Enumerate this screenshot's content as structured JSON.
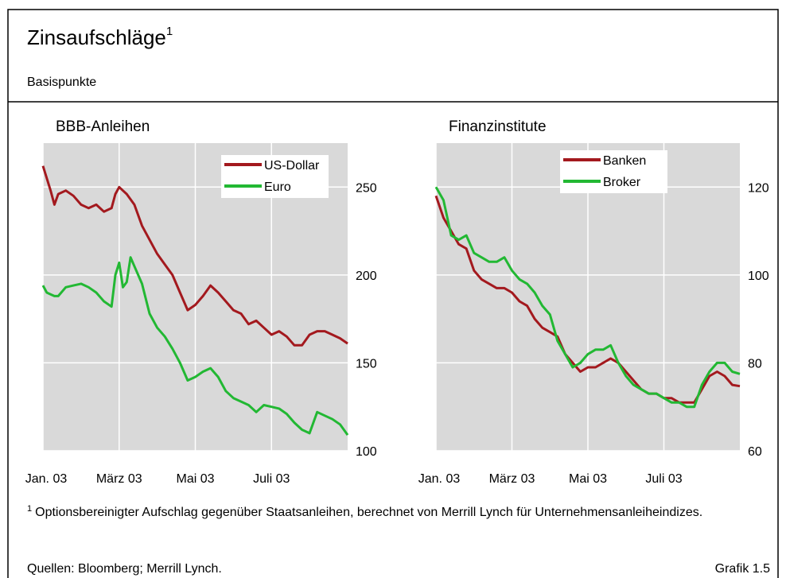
{
  "title": "Zinsaufschläge",
  "title_note": "1",
  "subtitle": "Basispunkte",
  "footnote_mark": "1",
  "footnote": "Optionsbereinigter Aufschlag gegenüber Staatsanleihen, berechnet von Merrill Lynch für Unternehmensanleiheindizes.",
  "source": "Quellen: Bloomberg; Merrill Lynch.",
  "figure_label": "Grafik 1.5",
  "chart_data": [
    {
      "type": "line",
      "title": "BBB-Anleihen",
      "grid": true,
      "legend": "upper right",
      "y_axis_side": "right",
      "xlim": [
        0,
        8
      ],
      "xticks": [
        {
          "value": 0,
          "label": "Jan. 03"
        },
        {
          "value": 2,
          "label": "März 03"
        },
        {
          "value": 4,
          "label": "Mai 03"
        },
        {
          "value": 6,
          "label": "Juli 03"
        }
      ],
      "ylim": [
        100,
        275
      ],
      "yticks": [
        100,
        150,
        200,
        250
      ],
      "x": [
        0,
        0.1,
        0.2,
        0.3,
        0.4,
        0.6,
        0.8,
        1.0,
        1.2,
        1.4,
        1.6,
        1.8,
        1.9,
        2.0,
        2.1,
        2.2,
        2.3,
        2.4,
        2.6,
        2.8,
        3.0,
        3.2,
        3.4,
        3.6,
        3.8,
        4.0,
        4.2,
        4.4,
        4.6,
        4.8,
        5.0,
        5.2,
        5.4,
        5.6,
        5.8,
        6.0,
        6.2,
        6.4,
        6.6,
        6.8,
        7.0,
        7.2,
        7.4,
        7.6,
        7.8,
        8.0
      ],
      "series": [
        {
          "name": "US-Dollar",
          "color": "#a3191e",
          "values": [
            262,
            255,
            248,
            240,
            246,
            248,
            245,
            240,
            238,
            240,
            236,
            238,
            246,
            250,
            248,
            246,
            243,
            240,
            228,
            220,
            212,
            206,
            200,
            190,
            180,
            183,
            188,
            194,
            190,
            185,
            180,
            178,
            172,
            174,
            170,
            166,
            168,
            165,
            160,
            160,
            166,
            168,
            168,
            166,
            164,
            161
          ]
        },
        {
          "name": "Euro",
          "color": "#22b833",
          "values": [
            194,
            190,
            189,
            188,
            188,
            193,
            194,
            195,
            193,
            190,
            185,
            182,
            200,
            207,
            193,
            196,
            210,
            205,
            195,
            178,
            170,
            165,
            158,
            150,
            140,
            142,
            145,
            147,
            142,
            134,
            130,
            128,
            126,
            122,
            126,
            125,
            124,
            121,
            116,
            112,
            110,
            122,
            120,
            118,
            115,
            109
          ]
        }
      ]
    },
    {
      "type": "line",
      "title": "Finanzinstitute",
      "grid": true,
      "legend": "upper center",
      "y_axis_side": "right",
      "xlim": [
        0,
        8
      ],
      "xticks": [
        {
          "value": 0,
          "label": "Jan. 03"
        },
        {
          "value": 2,
          "label": "März 03"
        },
        {
          "value": 4,
          "label": "Mai 03"
        },
        {
          "value": 6,
          "label": "Juli 03"
        }
      ],
      "ylim": [
        60,
        130
      ],
      "yticks": [
        60,
        80,
        100,
        120
      ],
      "x": [
        0,
        0.2,
        0.4,
        0.6,
        0.8,
        1.0,
        1.2,
        1.4,
        1.6,
        1.8,
        2.0,
        2.2,
        2.4,
        2.6,
        2.8,
        3.0,
        3.2,
        3.4,
        3.6,
        3.8,
        4.0,
        4.2,
        4.4,
        4.6,
        4.8,
        5.0,
        5.2,
        5.4,
        5.6,
        5.8,
        6.0,
        6.2,
        6.4,
        6.6,
        6.8,
        7.0,
        7.2,
        7.4,
        7.6,
        7.8,
        8.0
      ],
      "series": [
        {
          "name": "Banken",
          "color": "#a3191e",
          "values": [
            118,
            113,
            110,
            107,
            106,
            101,
            99,
            98,
            97,
            97,
            96,
            94,
            93,
            90,
            88,
            87,
            86,
            82,
            80,
            78,
            79,
            79,
            80,
            81,
            80,
            78,
            76,
            74,
            73,
            73,
            72,
            72,
            71,
            71,
            71,
            74,
            77,
            78,
            77,
            75,
            74.7
          ]
        },
        {
          "name": "Broker",
          "color": "#22b833",
          "values": [
            120,
            117,
            109,
            108,
            109,
            105,
            104,
            103,
            103,
            104,
            101,
            99,
            98,
            96,
            93,
            91,
            85,
            82,
            79,
            80,
            82,
            83,
            83,
            84,
            80,
            77,
            75,
            74,
            73,
            73,
            72,
            71,
            71,
            70,
            70,
            75,
            78,
            80,
            80,
            78,
            77.5
          ]
        }
      ]
    }
  ]
}
